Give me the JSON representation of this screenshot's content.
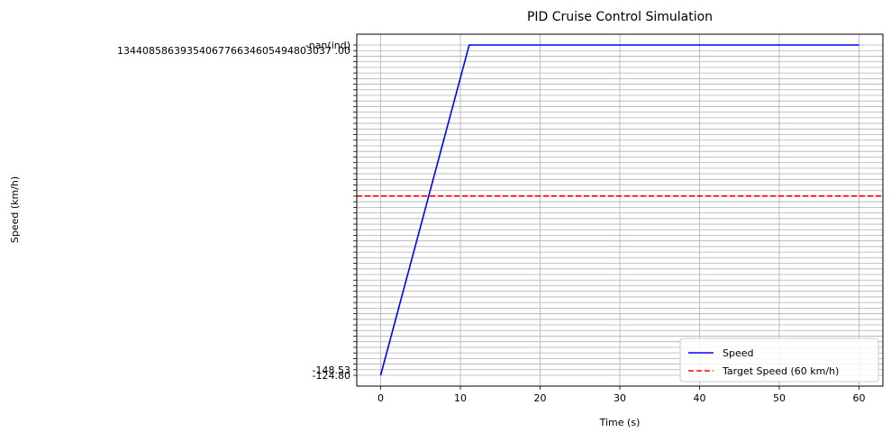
{
  "chart_data": {
    "type": "line",
    "title": "PID Cruise Control Simulation",
    "xlabel": "Time (s)",
    "ylabel": "Speed (km/h)",
    "xlim": [
      -3,
      63
    ],
    "xticks": [
      0,
      10,
      20,
      30,
      40,
      50,
      60
    ],
    "grid": true,
    "legend_position": "lower-right",
    "y_axis_note": "categorical axis: the y values are strings, each one a category tick",
    "series": [
      {
        "name": "Speed",
        "color": "#0000ff",
        "style": "solid",
        "x": [
          0.0,
          11.1,
          60.0
        ],
        "y": [
          "-124.80",
          "-nan(ind)",
          "-nan(ind)"
        ]
      },
      {
        "name": "Target Speed (60 km/h)",
        "color": "#ff0000",
        "style": "dashed",
        "type": "hline",
        "y_fraction": 0.46
      }
    ],
    "y_tick_count": 60,
    "y_ticks_legible": {
      "bottom": [
        "-124.80",
        "-148.53"
      ],
      "top": [
        "-nan(ind)",
        "1344085863935406776634605494803037 .00"
      ]
    }
  }
}
